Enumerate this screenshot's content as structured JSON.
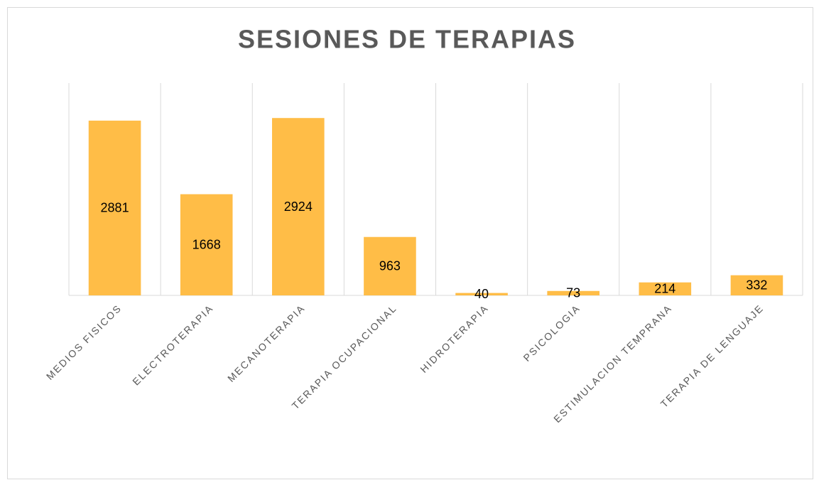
{
  "chart_data": {
    "type": "bar",
    "title": "SESIONES DE TERAPIAS",
    "categories": [
      "MEDIOS FISICOS",
      "ELECTROTERAPIA",
      "MECANOTERAPIA",
      "TERAPIA OCUPACIONAL",
      "HIDROTERAPIA",
      "PSICOLOGIA",
      "ESTIMULACION TEMPRANA",
      "TERAPIA DE LENGUAJE"
    ],
    "values": [
      2881,
      1668,
      2924,
      963,
      40,
      73,
      214,
      332
    ],
    "color": "#ffbd47",
    "ylim": [
      0,
      3500
    ]
  }
}
